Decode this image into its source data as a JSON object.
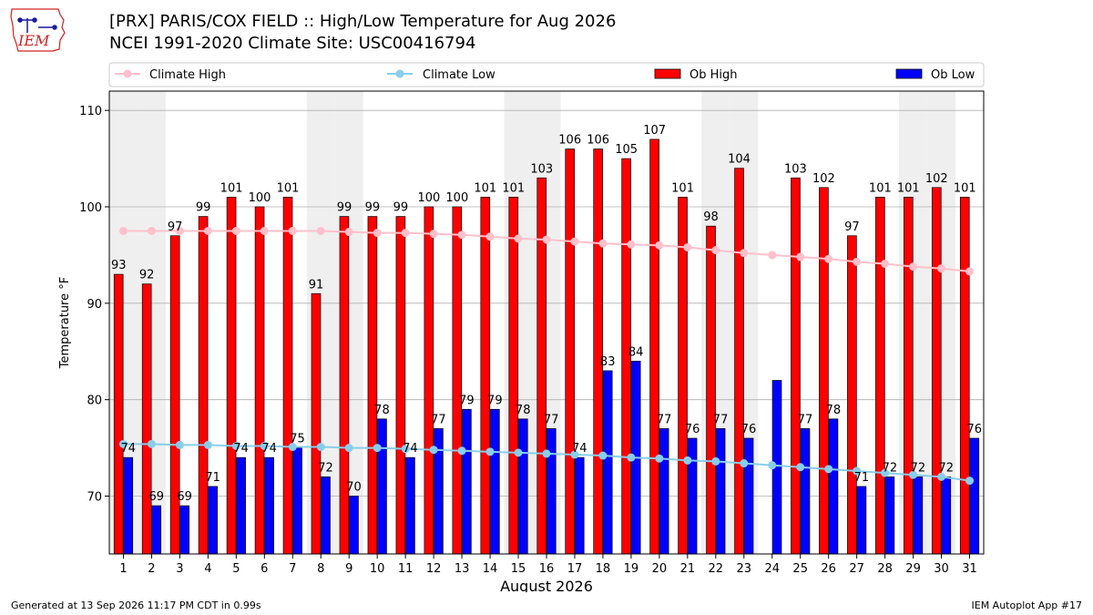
{
  "header": {
    "title": "[PRX] PARIS/COX FIELD :: High/Low Temperature for Aug 2026",
    "subtitle": "NCEI 1991-2020 Climate Site: USC00416794"
  },
  "logo": {
    "text": "IEM",
    "icon": "iem-iowa-logo-icon",
    "color": "#d42020"
  },
  "footer": {
    "generated": "Generated at 13 Sep 2026 11:17 PM CDT in 0.99s",
    "app": "IEM Autoplot App #17"
  },
  "chart_data": {
    "type": "bar",
    "xlabel": "August 2026",
    "ylabel": "Temperature °F",
    "ylim": [
      64,
      112
    ],
    "yticks": [
      70,
      80,
      90,
      100,
      110
    ],
    "grid": true,
    "legend_position": "top",
    "categories": [
      "1",
      "2",
      "3",
      "4",
      "5",
      "6",
      "7",
      "8",
      "9",
      "10",
      "11",
      "12",
      "13",
      "14",
      "15",
      "16",
      "17",
      "18",
      "19",
      "20",
      "21",
      "22",
      "23",
      "24",
      "25",
      "26",
      "27",
      "28",
      "29",
      "30",
      "31"
    ],
    "weekend_shaded_days": [
      1,
      2,
      8,
      9,
      15,
      16,
      22,
      23,
      29,
      30
    ],
    "series": [
      {
        "name": "Climate High",
        "type": "line",
        "color": "#ffc0cb",
        "values": [
          97.5,
          97.5,
          97.5,
          97.5,
          97.5,
          97.5,
          97.5,
          97.5,
          97.4,
          97.3,
          97.3,
          97.2,
          97.1,
          96.9,
          96.7,
          96.6,
          96.4,
          96.2,
          96.1,
          96.0,
          95.8,
          95.5,
          95.2,
          95.0,
          94.8,
          94.6,
          94.3,
          94.1,
          93.8,
          93.6,
          93.3
        ]
      },
      {
        "name": "Climate Low",
        "type": "line",
        "color": "#87ceeb",
        "values": [
          75.4,
          75.4,
          75.3,
          75.3,
          75.2,
          75.2,
          75.1,
          75.1,
          75.0,
          75.0,
          74.9,
          74.8,
          74.7,
          74.6,
          74.5,
          74.4,
          74.3,
          74.2,
          74.0,
          73.9,
          73.7,
          73.6,
          73.4,
          73.2,
          73.0,
          72.8,
          72.6,
          72.4,
          72.2,
          72.0,
          71.6
        ]
      },
      {
        "name": "Ob High",
        "type": "bar",
        "color": "#ff0000",
        "values": [
          93,
          92,
          97,
          99,
          101,
          100,
          101,
          91,
          99,
          99,
          99,
          100,
          100,
          101,
          101,
          103,
          106,
          106,
          105,
          107,
          101,
          98,
          104,
          null,
          103,
          102,
          97,
          101,
          101,
          102,
          101
        ],
        "labels": [
          "93",
          "92",
          "97",
          "99",
          "101",
          "100",
          "101",
          "91",
          "99",
          "99",
          "99",
          "100",
          "100",
          "101",
          "101",
          "103",
          "106",
          "106",
          "105",
          "107",
          "101",
          "98",
          "104",
          "",
          "103",
          "102",
          "97",
          "101",
          "101",
          "102",
          "101"
        ]
      },
      {
        "name": "Ob Low",
        "type": "bar",
        "color": "#0000ff",
        "values": [
          74,
          69,
          69,
          71,
          74,
          74,
          75,
          72,
          70,
          78,
          74,
          77,
          79,
          79,
          78,
          77,
          74,
          83,
          84,
          77,
          76,
          77,
          76,
          82,
          77,
          78,
          71,
          72,
          72,
          72,
          76
        ],
        "labels": [
          "74",
          "69",
          "69",
          "71",
          "74",
          "74",
          "75",
          "72",
          "70",
          "78",
          "74",
          "77",
          "79",
          "79",
          "78",
          "77",
          "74",
          "83",
          "84",
          "77",
          "76",
          "77",
          "76",
          "",
          "77",
          "78",
          "71",
          "72",
          "72",
          "72",
          "76"
        ]
      }
    ]
  }
}
